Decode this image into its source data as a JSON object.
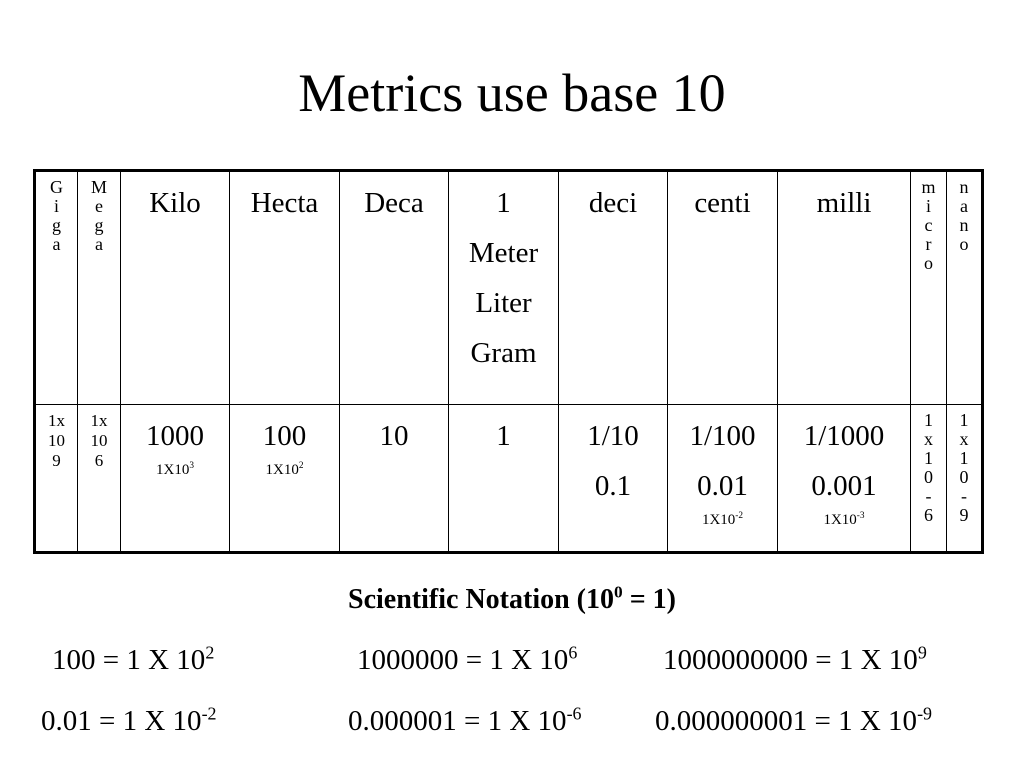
{
  "title": "Metrics use base 10",
  "prefixes": {
    "giga": [
      "G",
      "i",
      "g",
      "a"
    ],
    "mega": [
      "M",
      "e",
      "g",
      "a"
    ],
    "kilo": "Kilo",
    "hecta": "Hecta",
    "deca": "Deca",
    "base": [
      "1",
      "Meter",
      "Liter",
      "Gram"
    ],
    "deci": "deci",
    "centi": "centi",
    "milli": "milli",
    "micro": [
      "m",
      "i",
      "c",
      "r",
      "o"
    ],
    "nano": [
      "n",
      "a",
      "n",
      "o"
    ]
  },
  "values": {
    "giga": [
      "1x",
      "10",
      "9"
    ],
    "mega": [
      "1x",
      "10",
      "6"
    ],
    "kilo": {
      "value": "1000",
      "sci_base": "1X10",
      "sci_exp": "3"
    },
    "hecta": {
      "value": "100",
      "sci_base": "1X10",
      "sci_exp": "2"
    },
    "deca": {
      "value": "10"
    },
    "base": {
      "value": "1"
    },
    "deci": {
      "fraction": "1/10",
      "decimal": "0.1"
    },
    "centi": {
      "fraction": "1/100",
      "decimal": "0.01",
      "sci_base": "1X10",
      "sci_exp": "-2"
    },
    "milli": {
      "fraction": "1/1000",
      "decimal": "0.001",
      "sci_base": "1X10",
      "sci_exp": "-3"
    },
    "micro": [
      "1",
      "x",
      "1",
      "0",
      "-",
      "6"
    ],
    "nano": [
      "1",
      "x",
      "1",
      "0",
      "-",
      "9"
    ]
  },
  "notation": {
    "heading_prefix": "Scientific Notation (10",
    "heading_exp": "0",
    "heading_suffix": " = 1)",
    "equations": [
      {
        "base": "100 = 1 X 10",
        "exp": "2"
      },
      {
        "base": "1000000 = 1 X 10",
        "exp": "6"
      },
      {
        "base": "1000000000 = 1 X 10",
        "exp": "9"
      },
      {
        "base": "0.01 = 1 X 10",
        "exp": "-2"
      },
      {
        "base": "0.000001 = 1 X 10",
        "exp": "-6"
      },
      {
        "base": "0.000000001 = 1 X 10",
        "exp": "-9"
      }
    ]
  }
}
